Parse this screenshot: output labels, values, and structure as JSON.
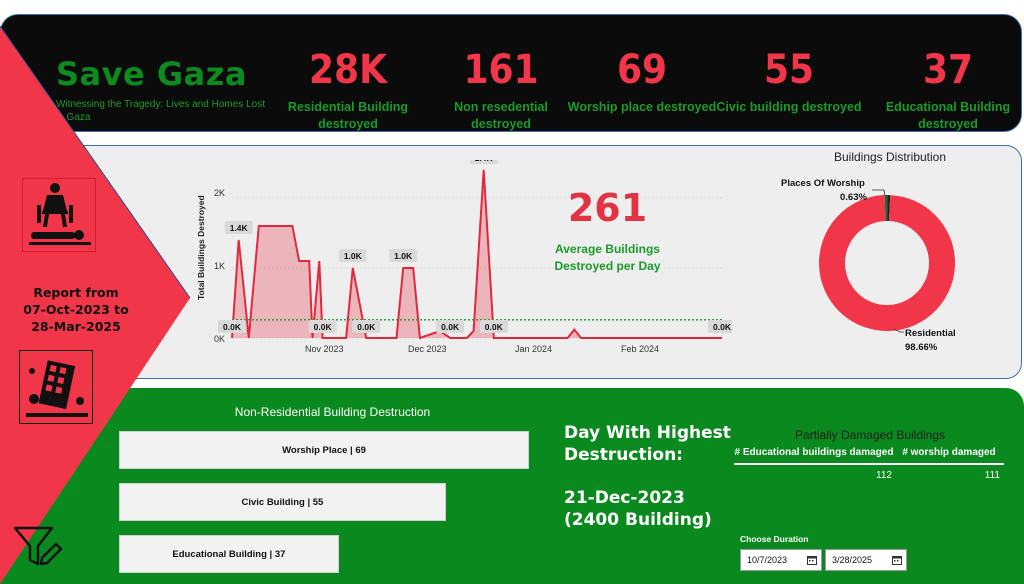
{
  "header": {
    "title": "Save Gaza",
    "subtitle": "Witnessing the Tragedy: Lives and Homes Lost in Gaza"
  },
  "kpis": [
    {
      "value": "28K",
      "label": "Residential Building destroyed"
    },
    {
      "value": "161",
      "label": "Non resedential destroyed"
    },
    {
      "value": "69",
      "label": "Worship place destroyed"
    },
    {
      "value": "55",
      "label": "Civic building destroyed"
    },
    {
      "value": "37",
      "label": "Educational Building destroyed"
    }
  ],
  "side": {
    "report_text": "Report from 07-Oct-2023 to 28-Mar-2025",
    "icons": [
      "grief-icon",
      "collapsing-building-icon",
      "filter-edit-icon"
    ]
  },
  "chart_data": [
    {
      "type": "area",
      "ylabel": "Total Buildings Destroyed",
      "x_tick_labels": [
        "Nov 2023",
        "Dec 2023",
        "Jan 2024",
        "Feb 2024"
      ],
      "y_tick_labels": [
        "0K",
        "1K",
        "2K"
      ],
      "ylim": [
        0,
        2400
      ],
      "average_line": 261,
      "points": [
        {
          "x": "2023-10-07",
          "y": 0
        },
        {
          "x": "2023-10-09",
          "y": 1400
        },
        {
          "x": "2023-10-12",
          "y": 0
        },
        {
          "x": "2023-10-15",
          "y": 1600
        },
        {
          "x": "2023-10-25",
          "y": 1600
        },
        {
          "x": "2023-10-27",
          "y": 1100
        },
        {
          "x": "2023-10-30",
          "y": 1100
        },
        {
          "x": "2023-10-31",
          "y": 0
        },
        {
          "x": "2023-11-02",
          "y": 1100
        },
        {
          "x": "2023-11-03",
          "y": 0
        },
        {
          "x": "2023-11-10",
          "y": 0
        },
        {
          "x": "2023-11-12",
          "y": 1000
        },
        {
          "x": "2023-11-16",
          "y": 0
        },
        {
          "x": "2023-11-25",
          "y": 0
        },
        {
          "x": "2023-11-27",
          "y": 1000
        },
        {
          "x": "2023-11-30",
          "y": 1000
        },
        {
          "x": "2023-12-02",
          "y": 0
        },
        {
          "x": "2023-12-08",
          "y": 100
        },
        {
          "x": "2023-12-11",
          "y": 0
        },
        {
          "x": "2023-12-16",
          "y": 0
        },
        {
          "x": "2023-12-18",
          "y": 100
        },
        {
          "x": "2023-12-21",
          "y": 2400
        },
        {
          "x": "2023-12-24",
          "y": 0
        },
        {
          "x": "2024-01-15",
          "y": 0
        },
        {
          "x": "2024-01-17",
          "y": 120
        },
        {
          "x": "2024-01-19",
          "y": 0
        },
        {
          "x": "2024-03-01",
          "y": 0
        }
      ],
      "data_labels": [
        {
          "text": "0.0K",
          "x": "2023-10-07",
          "y": 0
        },
        {
          "text": "1.4K",
          "x": "2023-10-09",
          "y": 1400
        },
        {
          "text": "0.0K",
          "x": "2023-11-03",
          "y": 0
        },
        {
          "text": "1.0K",
          "x": "2023-11-12",
          "y": 1000
        },
        {
          "text": "0.0K",
          "x": "2023-11-16",
          "y": 0
        },
        {
          "text": "1.0K",
          "x": "2023-11-27",
          "y": 1000
        },
        {
          "text": "0.0K",
          "x": "2023-12-11",
          "y": 0
        },
        {
          "text": "2.4K",
          "x": "2023-12-21",
          "y": 2400
        },
        {
          "text": "0.0K",
          "x": "2023-12-24",
          "y": 0
        },
        {
          "text": "0.0K",
          "x": "2024-03-01",
          "y": 0
        }
      ]
    },
    {
      "type": "pie",
      "title": "Buildings Distribution",
      "slices": [
        {
          "label": "Residential",
          "value": 98.66,
          "label_text": "98.66%",
          "color": "#f2364a"
        },
        {
          "label": "Places Of Worship",
          "value": 0.63,
          "label_text": "0.63%",
          "color": "#1a6b2a"
        },
        {
          "label": "",
          "value": 0.71,
          "label_text": "",
          "color": "#222222"
        }
      ]
    }
  ],
  "average": {
    "value": "261",
    "label": "Average Buildings Destroyed per Day"
  },
  "non_residential": {
    "title": "Non-Residential Building Destruction",
    "bars": [
      {
        "label": "Worship Place | 69",
        "value": 69
      },
      {
        "label": "Civic Building | 55",
        "value": 55
      },
      {
        "label": "Educational Building | 37",
        "value": 37
      }
    ]
  },
  "highest_day": {
    "title": "Day With Highest Destruction:",
    "date": "21-Dec-2023",
    "count": "(2400 Building)"
  },
  "partial": {
    "title": "Partially Damaged Buildings",
    "col1": "# Educational buildings damaged",
    "col2": "# worship damaged",
    "val1": "112",
    "val2": "111"
  },
  "duration": {
    "label": "Choose Duration",
    "start": "10/7/2023",
    "end": "3/28/2025"
  },
  "colors": {
    "accent_red": "#f2364a",
    "accent_green": "#0a8a1e",
    "dark": "#0b0b0b"
  }
}
